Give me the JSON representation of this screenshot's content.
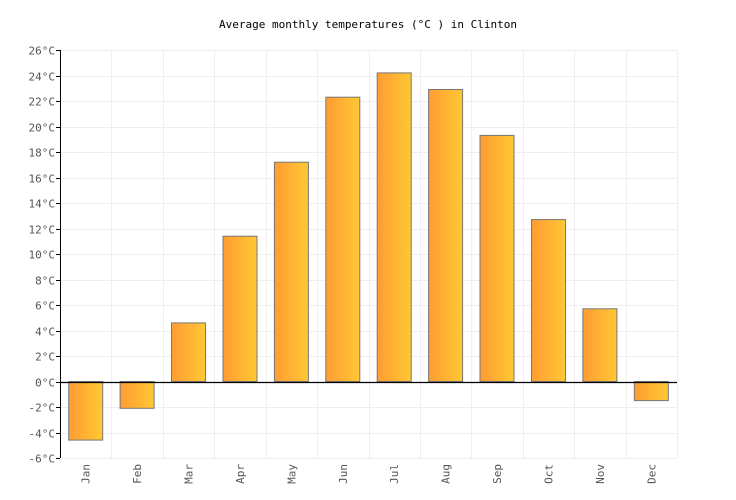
{
  "chart_data": {
    "type": "bar",
    "title": "Average monthly temperatures (°C ) in Clinton",
    "categories": [
      "Jan",
      "Feb",
      "Mar",
      "Apr",
      "May",
      "Jun",
      "Jul",
      "Aug",
      "Sep",
      "Oct",
      "Nov",
      "Dec"
    ],
    "values": [
      -4.6,
      -2.1,
      4.6,
      11.4,
      17.2,
      22.3,
      24.2,
      22.9,
      19.3,
      12.7,
      5.7,
      -1.5
    ],
    "unit": "°C",
    "ylim": [
      -6,
      26
    ],
    "yticks": [
      -6,
      -4,
      -2,
      0,
      2,
      4,
      6,
      8,
      10,
      12,
      14,
      16,
      18,
      20,
      22,
      24,
      26
    ],
    "ytick_labels": [
      "-6°C",
      "-4°C",
      "-2°C",
      "0°C",
      "2°C",
      "4°C",
      "6°C",
      "8°C",
      "10°C",
      "12°C",
      "14°C",
      "16°C",
      "18°C",
      "20°C",
      "22°C",
      "24°C",
      "26°C"
    ],
    "xlabel": "",
    "ylabel": "",
    "grid": true,
    "colors": {
      "bar_left": "#ff9c33",
      "bar_right": "#ffc833",
      "bar_border": "#777777",
      "grid": "#eeeeee"
    }
  }
}
